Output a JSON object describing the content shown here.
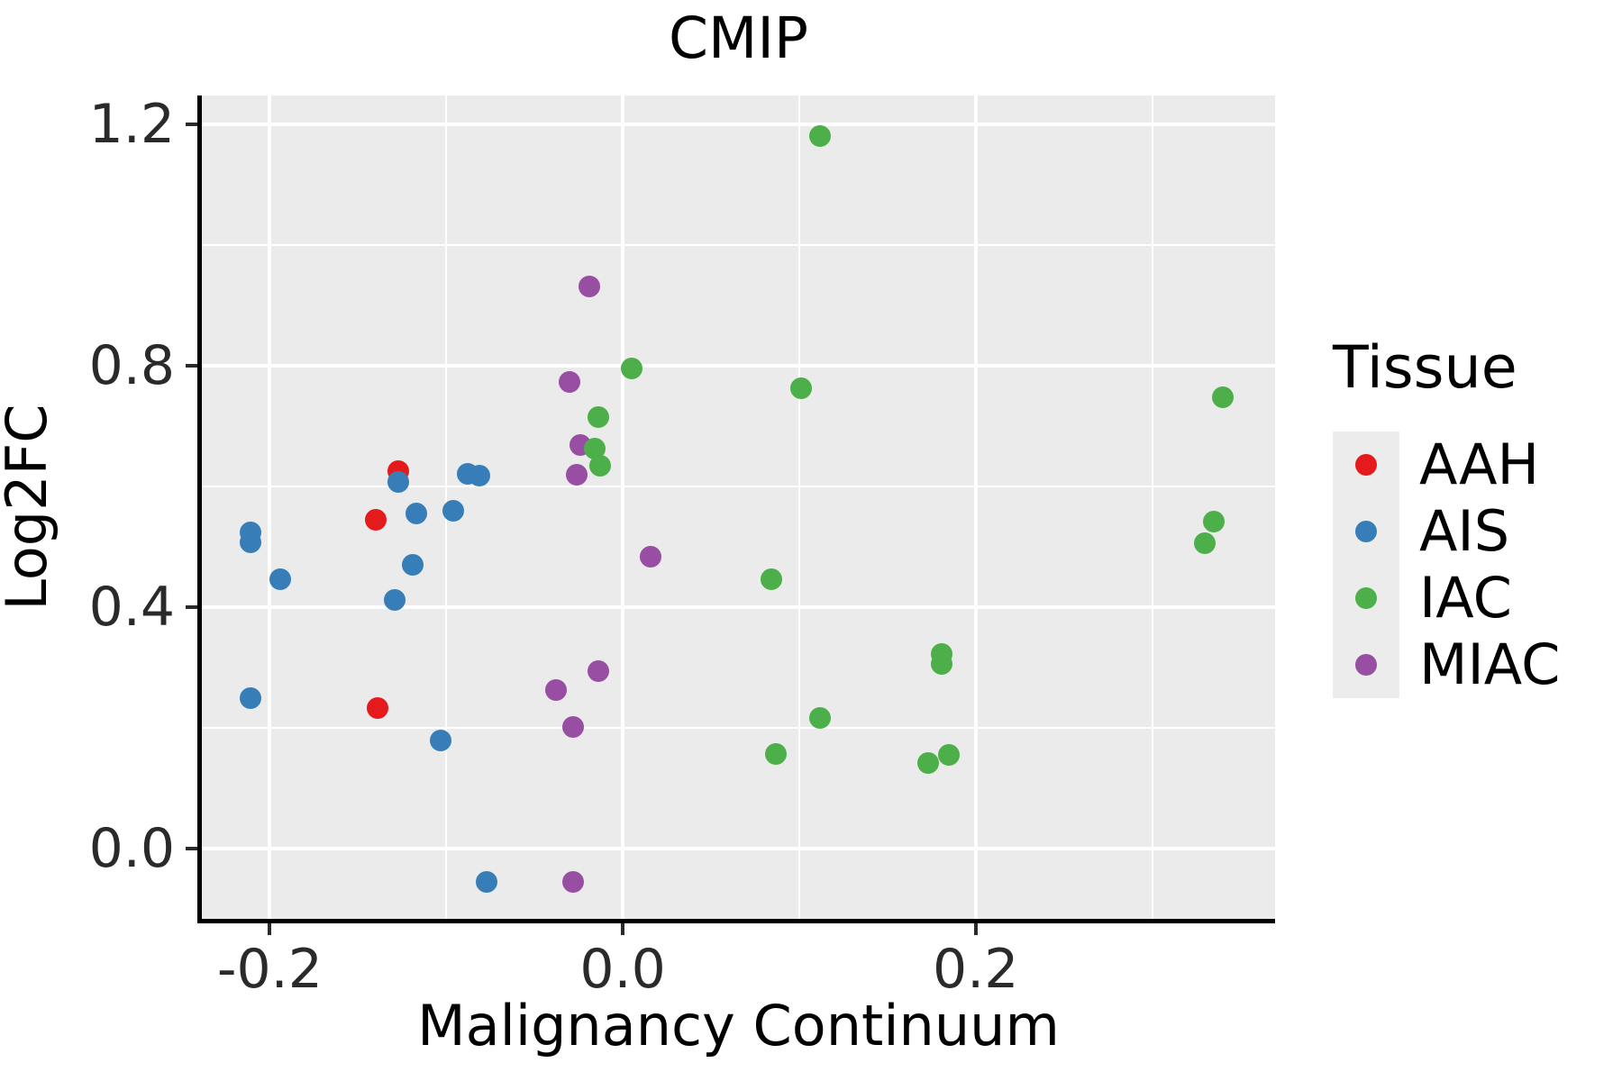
{
  "page": {
    "background": "#FFFFFF"
  },
  "chart_data": {
    "type": "scatter",
    "title": "CMIP",
    "xlabel": "Malignancy Continuum",
    "ylabel": "Log2FC",
    "grid": true,
    "legend_position": "right",
    "x_axis": {
      "lim": [
        -0.2385,
        0.3697
      ],
      "major_ticks": [
        -0.2,
        0.0,
        0.2
      ],
      "tick_labels": [
        "-0.2",
        "0.0",
        "0.2"
      ],
      "minor_gridlines": [
        -0.1,
        0.1,
        0.3
      ]
    },
    "y_axis": {
      "lim": [
        -0.1164,
        1.2478
      ],
      "major_ticks": [
        0.0,
        0.4,
        0.8,
        1.2
      ],
      "tick_labels": [
        "0.0",
        "0.4",
        "0.8",
        "1.2"
      ],
      "minor_gridlines": [
        0.2,
        0.6,
        1.0
      ]
    },
    "legend": {
      "title": "Tissue",
      "items": [
        "AAH",
        "AIS",
        "IAC",
        "MIAC"
      ]
    },
    "series": [
      {
        "name": "AAH",
        "color": "#E41A1C",
        "points": [
          [
            -0.127,
            0.625
          ],
          [
            -0.14,
            0.545
          ],
          [
            -0.139,
            0.233
          ]
        ]
      },
      {
        "name": "AIS",
        "color": "#377EB8",
        "points": [
          [
            -0.127,
            0.607
          ],
          [
            -0.096,
            0.56
          ],
          [
            -0.117,
            0.555
          ],
          [
            -0.088,
            0.621
          ],
          [
            -0.081,
            0.618
          ],
          [
            -0.211,
            0.524
          ],
          [
            -0.211,
            0.507
          ],
          [
            -0.194,
            0.446
          ],
          [
            -0.119,
            0.47
          ],
          [
            -0.129,
            0.412
          ],
          [
            -0.211,
            0.249
          ],
          [
            -0.103,
            0.179
          ],
          [
            -0.077,
            -0.055
          ]
        ]
      },
      {
        "name": "IAC",
        "color": "#4DAF4A",
        "points": [
          [
            0.112,
            1.181
          ],
          [
            0.005,
            0.796
          ],
          [
            0.101,
            0.763
          ],
          [
            0.34,
            0.748
          ],
          [
            -0.014,
            0.715
          ],
          [
            -0.016,
            0.663
          ],
          [
            -0.013,
            0.634
          ],
          [
            0.335,
            0.542
          ],
          [
            0.33,
            0.506
          ],
          [
            0.084,
            0.446
          ],
          [
            0.181,
            0.322
          ],
          [
            0.181,
            0.306
          ],
          [
            0.112,
            0.216
          ],
          [
            0.087,
            0.157
          ],
          [
            0.185,
            0.155
          ],
          [
            0.173,
            0.142
          ]
        ]
      },
      {
        "name": "MIAC",
        "color": "#984EA3",
        "points": [
          [
            -0.019,
            0.931
          ],
          [
            -0.03,
            0.773
          ],
          [
            -0.024,
            0.669
          ],
          [
            -0.026,
            0.62
          ],
          [
            0.016,
            0.483
          ],
          [
            -0.014,
            0.294
          ],
          [
            -0.038,
            0.262
          ],
          [
            -0.028,
            0.202
          ],
          [
            -0.028,
            -0.055
          ]
        ]
      }
    ],
    "draw_order": [
      "AAH",
      "AIS",
      "MIAC",
      "IAC"
    ],
    "style": {
      "panel_bg": "#EBEBEB",
      "grid_color": "#FFFFFF",
      "axis_line_color": "#000000",
      "tick_color": "#2A2A2A",
      "text_color": "#000000",
      "legend_key_bg": "#ECECEC"
    }
  }
}
